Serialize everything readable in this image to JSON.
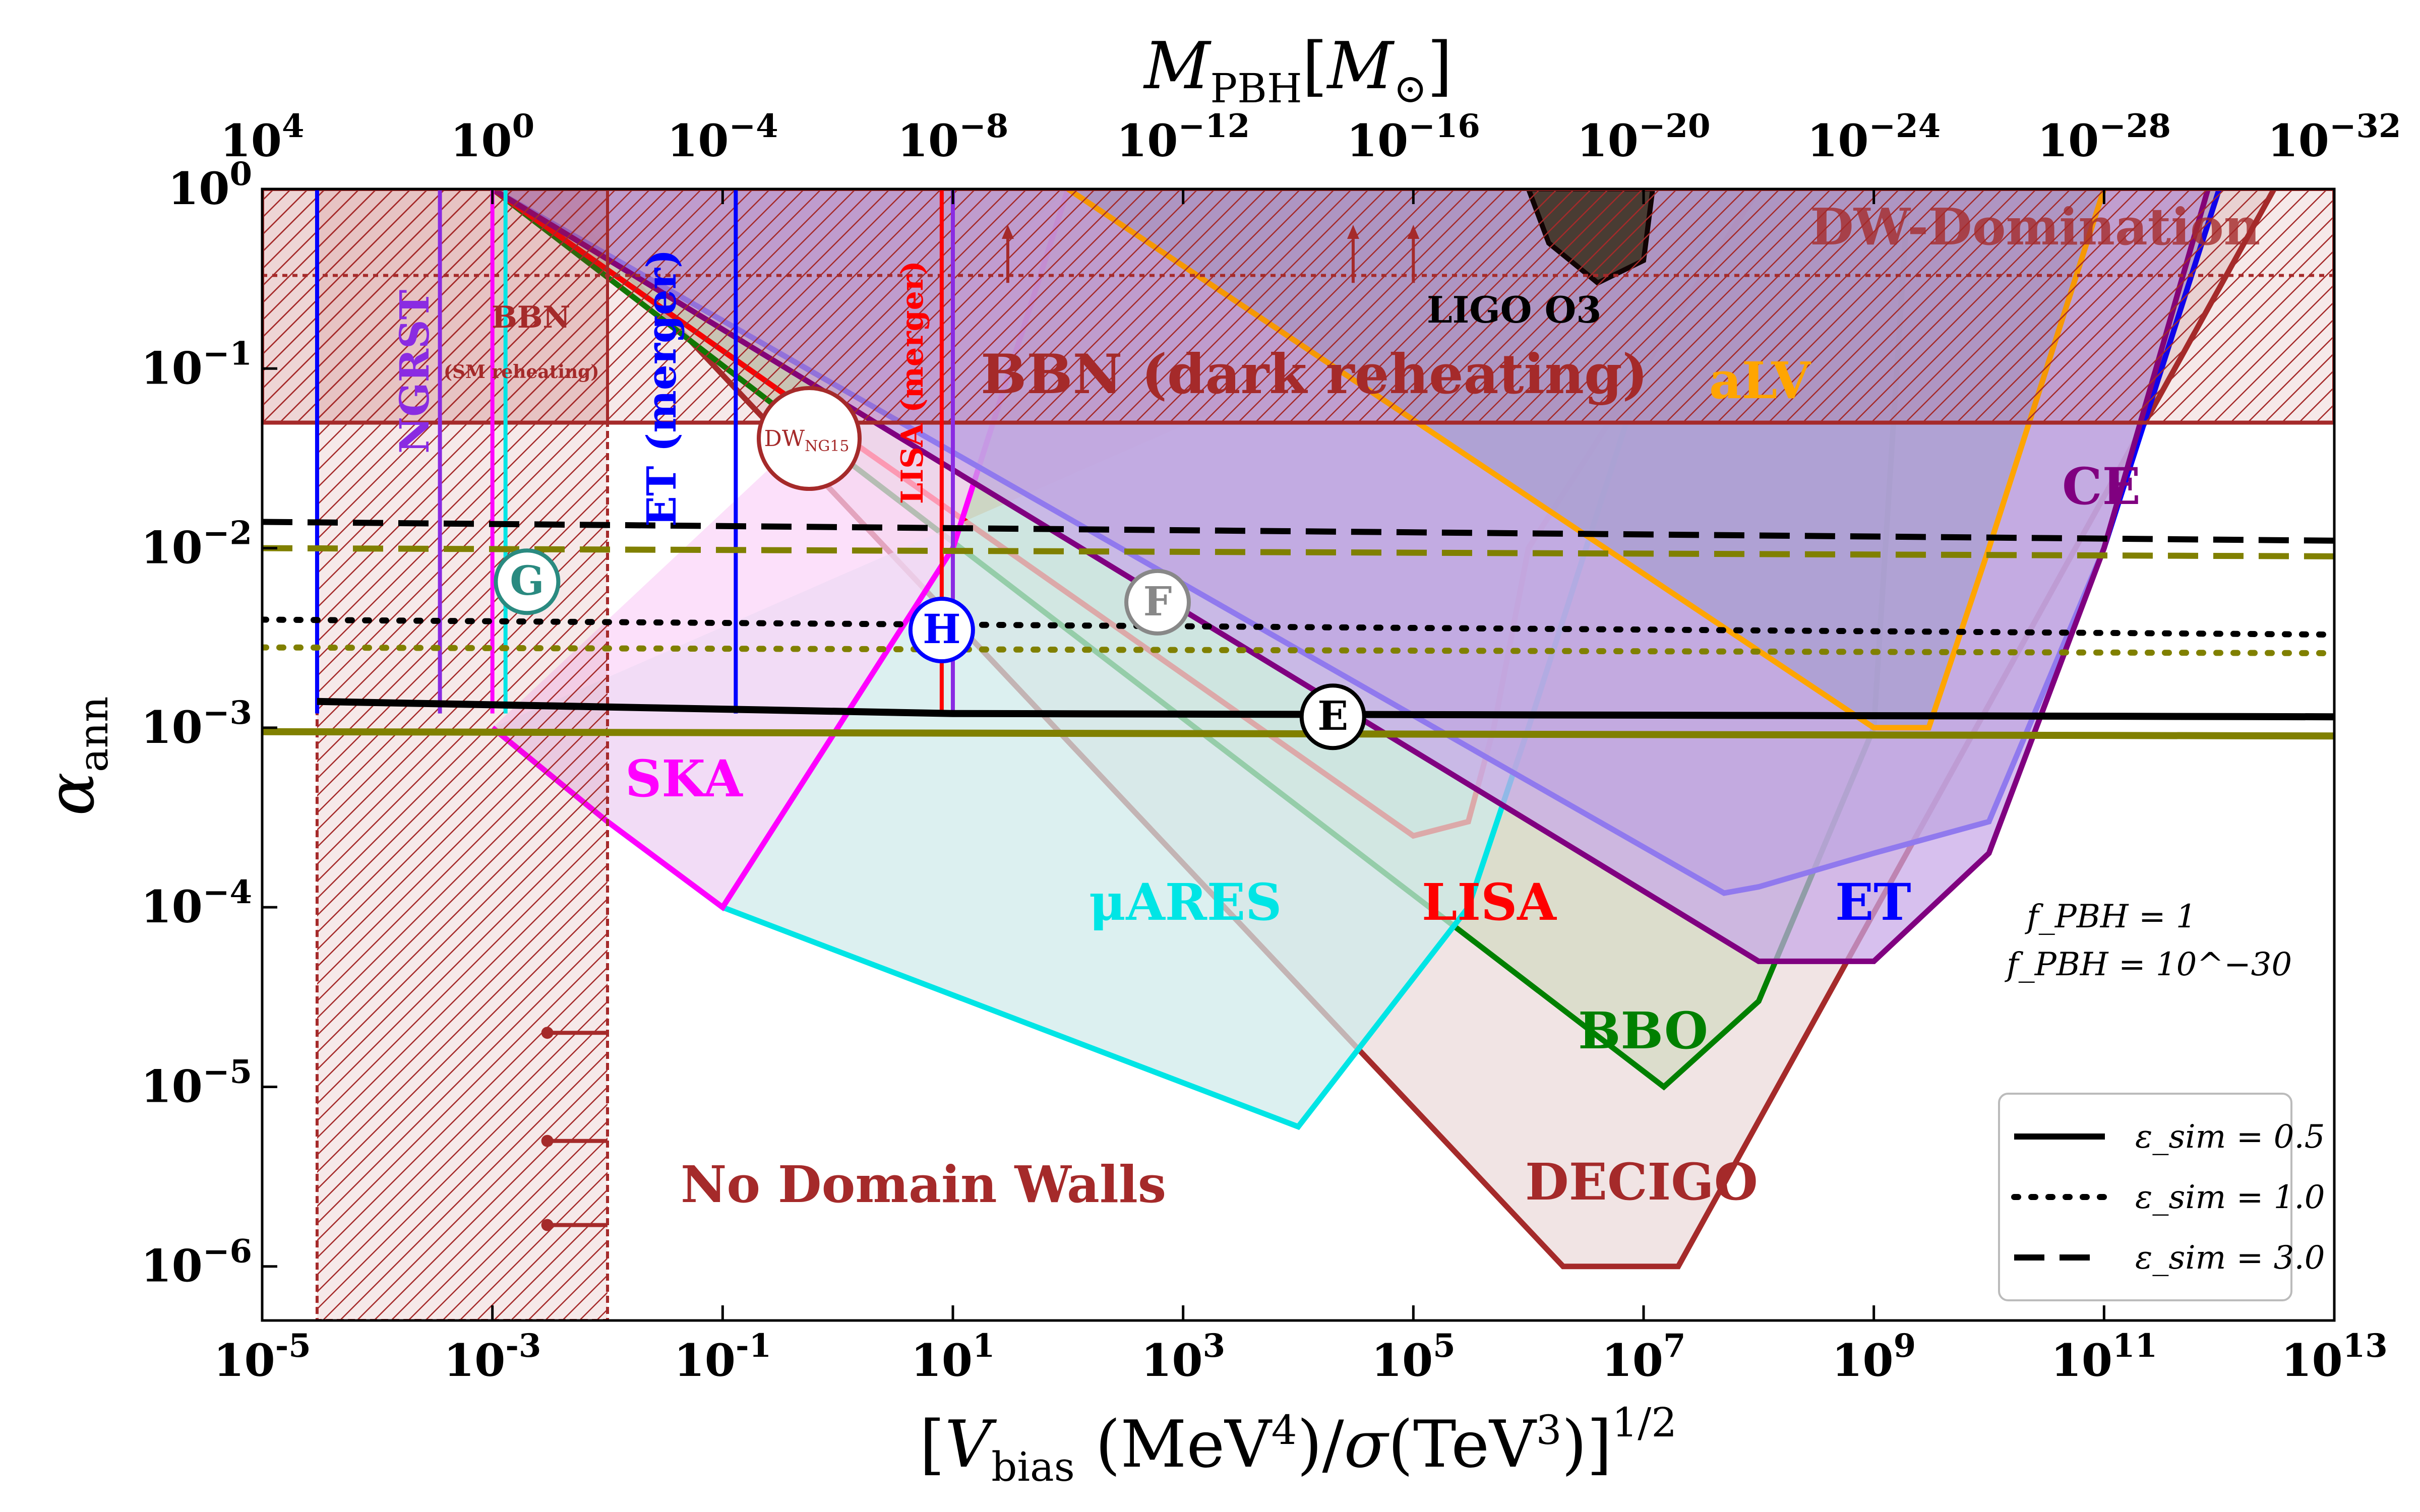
{
  "chart_data": {
    "type": "line",
    "title": "",
    "xlabel": "[V_bias (MeV^4)/σ(TeV^3)]^1/2",
    "ylabel": "α_ann",
    "top_xlabel": "M_PBH[M_⊙]",
    "x_scale": "log",
    "y_scale": "log",
    "xlim": [
      1e-05,
      10000000000000.0
    ],
    "ylim": [
      5e-07,
      1
    ],
    "top_xlim": [
      10000.0,
      1e-32
    ],
    "grid": false,
    "x_ticks": [
      {
        "exp": "-5",
        "value": 1e-05
      },
      {
        "exp": "-3",
        "value": 0.001
      },
      {
        "exp": "-1",
        "value": 0.1
      },
      {
        "exp": "1",
        "value": 10
      },
      {
        "exp": "3",
        "value": 1000.0
      },
      {
        "exp": "5",
        "value": 100000.0
      },
      {
        "exp": "7",
        "value": 10000000.0
      },
      {
        "exp": "9",
        "value": 1000000000.0
      },
      {
        "exp": "11",
        "value": 100000000000.0
      },
      {
        "exp": "13",
        "value": 10000000000000.0
      }
    ],
    "top_ticks": [
      {
        "exp": "4",
        "value": 10000.0
      },
      {
        "exp": "0",
        "value": 1
      },
      {
        "exp": "−4",
        "value": 0.0001
      },
      {
        "exp": "−8",
        "value": 1e-08
      },
      {
        "exp": "−12",
        "value": 1e-12
      },
      {
        "exp": "−16",
        "value": 1e-16
      },
      {
        "exp": "−20",
        "value": 1e-20
      },
      {
        "exp": "−24",
        "value": 1e-24
      },
      {
        "exp": "−28",
        "value": 1e-28
      },
      {
        "exp": "−32",
        "value": 1e-32
      }
    ],
    "y_ticks": [
      {
        "mantissa": "10",
        "exp": "0",
        "value": 1
      },
      {
        "mantissa": "10",
        "exp": "−1",
        "value": 0.1
      },
      {
        "mantissa": "10",
        "exp": "−2",
        "value": 0.01
      },
      {
        "mantissa": "10",
        "exp": "−3",
        "value": 0.001
      },
      {
        "mantissa": "10",
        "exp": "−4",
        "value": 0.0001
      },
      {
        "mantissa": "10",
        "exp": "−5",
        "value": 1e-05
      },
      {
        "mantissa": "10",
        "exp": "−6",
        "value": 1e-06
      }
    ],
    "regions": [
      {
        "name": "DECIGO",
        "color": "#a52a2a",
        "fill": "#ecdada",
        "points": [
          [
            0.003,
            1
          ],
          [
            2000000.0,
            1e-06
          ],
          [
            20000000.0,
            1e-06
          ],
          [
            3000000000000.0,
            1
          ]
        ]
      },
      {
        "name": "BBO",
        "color": "#008000",
        "fill": "#d4d9c2",
        "points": [
          [
            0.001,
            1
          ],
          [
            15000000.0,
            1e-05
          ],
          [
            100000000.0,
            3e-05
          ],
          [
            1000000000.0,
            0.001
          ],
          [
            2000000000.0,
            1
          ]
        ]
      },
      {
        "name": "LISA",
        "color": "#ff0000",
        "fill": "#c8d2c0",
        "points": [
          [
            0.001,
            1
          ],
          [
            100000.0,
            0.00025
          ],
          [
            300000.0,
            0.0003
          ],
          [
            500000.0,
            0.001
          ],
          [
            1000000.0,
            0.01
          ],
          [
            10000000.0,
            0.1
          ],
          [
            100000000.0,
            1
          ]
        ]
      },
      {
        "name": "μARES",
        "color": "#00e5e5",
        "fill": "#cfeaea",
        "points": [
          [
            0.001,
            0.001
          ],
          [
            0.01,
            0.0003
          ],
          [
            0.1,
            0.0001
          ],
          [
            10000.0,
            6e-06
          ],
          [
            300000.0,
            0.0001
          ],
          [
            1000000.0,
            0.001
          ],
          [
            10000000.0,
            0.1
          ],
          [
            50000000.0,
            1
          ]
        ]
      },
      {
        "name": "SKA",
        "color": "#ff00ff",
        "fill": "#fbd4f8",
        "points": [
          [
            0.001,
            0.001
          ],
          [
            0.01,
            0.0003
          ],
          [
            0.1,
            0.0001
          ],
          [
            0.3,
            0.0003
          ],
          [
            1,
            0.001
          ],
          [
            10,
            0.01
          ],
          [
            100,
            1
          ]
        ]
      },
      {
        "name": "ET",
        "color": "#0000ff",
        "fill": "#a89ecf",
        "points": [
          [
            0.001,
            1
          ],
          [
            50000000.0,
            0.00012
          ],
          [
            100000000.0,
            0.00013
          ],
          [
            1000000000.0,
            0.0002
          ],
          [
            10000000000.0,
            0.0003
          ],
          [
            100000000000.0,
            0.01
          ],
          [
            1000000000000.0,
            1
          ]
        ]
      },
      {
        "name": "CE",
        "color": "#800080",
        "fill": "#c8a8e8",
        "points": [
          [
            0.001,
            1
          ],
          [
            100000000.0,
            5e-05
          ],
          [
            1000000000.0,
            5e-05
          ],
          [
            10000000000.0,
            0.0002
          ],
          [
            100000000000.0,
            0.01
          ],
          [
            800000000000.0,
            1
          ]
        ]
      },
      {
        "name": "aLV",
        "color": "#ffa500",
        "fill": "#a89ecf",
        "points": [
          [
            100.0,
            1
          ],
          [
            1000000000.0,
            0.001
          ],
          [
            3000000000.0,
            0.001
          ],
          [
            10000000000.0,
            0.01
          ],
          [
            100000000000.0,
            1
          ]
        ]
      }
    ],
    "curves": [
      {
        "name": "E",
        "style": "solid",
        "color": "#000000",
        "eps": "0.5",
        "points": [
          [
            3e-05,
            0.0014
          ],
          [
            10,
            0.0012
          ],
          [
            10000000000000.0,
            0.00115
          ]
        ]
      },
      {
        "name": "F",
        "style": "dotted",
        "color": "#000000",
        "eps": "1.0",
        "points": [
          [
            1e-05,
            0.004
          ],
          [
            10000000000000.0,
            0.0033
          ]
        ]
      },
      {
        "name": "dashed-black",
        "style": "dashed",
        "color": "#000000",
        "eps": "3.0",
        "points": [
          [
            1e-05,
            0.014
          ],
          [
            10000000000000.0,
            0.011
          ]
        ]
      },
      {
        "name": "olive-solid",
        "style": "solid",
        "color": "#808000",
        "points": [
          [
            1e-05,
            0.00095
          ],
          [
            10000000000000.0,
            0.0009
          ]
        ]
      },
      {
        "name": "olive-dotted",
        "style": "dotted",
        "color": "#808000",
        "points": [
          [
            1e-05,
            0.0028
          ],
          [
            10000000000000.0,
            0.0026
          ]
        ]
      },
      {
        "name": "olive-dashed",
        "style": "dashed",
        "color": "#808000",
        "points": [
          [
            1e-05,
            0.01
          ],
          [
            10000000000000.0,
            0.009
          ]
        ]
      }
    ],
    "labels": {
      "dw_domination": "DW-Domination",
      "bbn_dark": "BBN (dark reheating)",
      "bbn": "BBN",
      "bbn_sm": "(SM reheating)",
      "ligo": "LIGO O3",
      "alv": "aLV",
      "ce": "CE",
      "ngrst": "NGRST",
      "et_merger": "ET (merger)",
      "lisa_merger": "LISA (merger)",
      "dw_ng15": "DW",
      "dw_ng15_sub": "NG15",
      "ska": "SKA",
      "mu_ares": "μARES",
      "lisa": "LISA",
      "et": "ET",
      "bbo": "BBO",
      "decigo": "DECIGO",
      "no_dw": "No Domain Walls",
      "f_pbh_1": "f_PBH = 1",
      "f_pbh_2": "f_PBH = 10^−30",
      "marker_e": "E",
      "marker_f": "F",
      "marker_g": "G",
      "marker_h": "H"
    },
    "legend": {
      "position": "lower-right",
      "entries": [
        {
          "style": "solid",
          "label": "ε_sim = 0.5"
        },
        {
          "style": "dotted",
          "label": "ε_sim = 1.0"
        },
        {
          "style": "dashed",
          "label": "ε_sim = 3.0"
        }
      ]
    }
  }
}
